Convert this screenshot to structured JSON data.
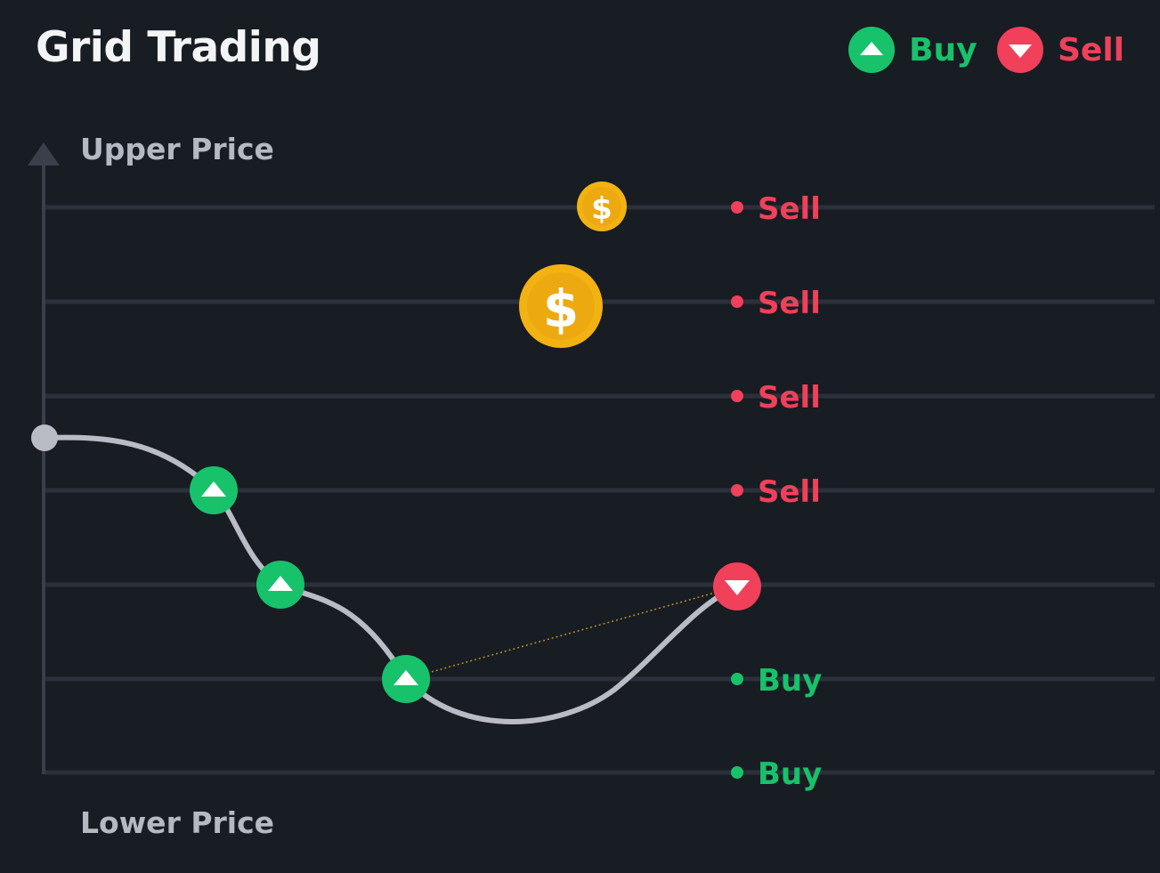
{
  "title": "Grid Trading",
  "legend": [
    {
      "label": "Buy",
      "kind": "buy",
      "icon": "triangle-up-icon"
    },
    {
      "label": "Sell",
      "kind": "sell",
      "icon": "triangle-down-icon"
    }
  ],
  "axis": {
    "upper_label": "Upper Price",
    "lower_label": "Lower Price"
  },
  "levels": [
    {
      "label": "Sell",
      "kind": "sell"
    },
    {
      "label": "Sell",
      "kind": "sell"
    },
    {
      "label": "Sell",
      "kind": "sell"
    },
    {
      "label": "Sell",
      "kind": "sell"
    },
    {
      "label": "",
      "kind": "current"
    },
    {
      "label": "Buy",
      "kind": "buy"
    },
    {
      "label": "Buy",
      "kind": "buy"
    }
  ],
  "coin_symbol": "$",
  "colors": {
    "background": "#181c23",
    "grid_line": "#2b303a",
    "axis": "#3a3f49",
    "price_curve": "#b9bcc4",
    "buy": "#17c26b",
    "sell": "#f0405a",
    "coin": "#f2b312",
    "title": "#f3f4f6"
  }
}
